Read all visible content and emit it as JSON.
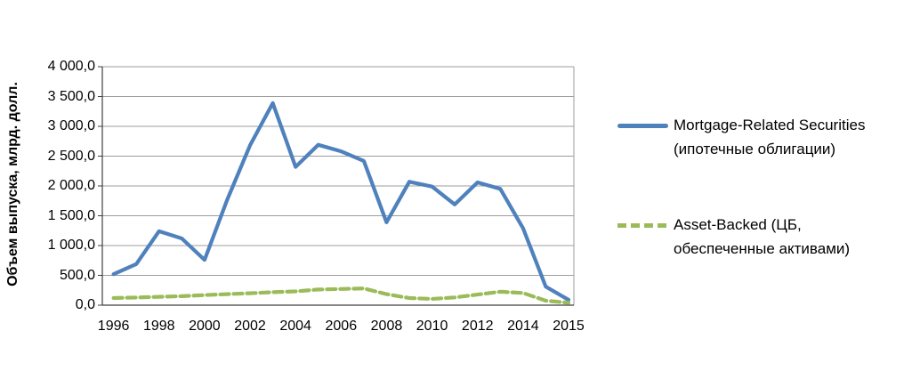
{
  "y_axis": {
    "title": "Объем выпуска, млрд. долл.",
    "tick_labels": [
      "4 000,0",
      "3 500,0",
      "3 000,0",
      "2 500,0",
      "2 000,0",
      "1 500,0",
      "1 000,0",
      "500,0",
      "0,0"
    ]
  },
  "x_axis": {
    "tick_labels": [
      "1996",
      "1998",
      "2000",
      "2002",
      "2004",
      "2006",
      "2008",
      "2010",
      "2012",
      "2014",
      "2015"
    ]
  },
  "legend": [
    {
      "label": "Mortgage-Related Securities (ипотечные облигации)",
      "color": "#4F81BD",
      "line_style": "solid"
    },
    {
      "label": "Asset-Backed (ЦБ, обеспеченные активами)",
      "color": "#9BBB59",
      "line_style": "dashed"
    }
  ],
  "colors": {
    "series1": "#4F81BD",
    "series2": "#9BBB59",
    "gridline": "#9C9C9C",
    "axis": "#3F3F3F",
    "text": "#000000",
    "background": "#FFFFFF"
  },
  "chart_data": {
    "type": "line",
    "title": "",
    "xlabel": "",
    "ylabel": "Объем выпуска, млрд. долл.",
    "ylim": [
      0,
      4000
    ],
    "y_tick_step": 500,
    "grid": "horizontal",
    "legend_position": "right",
    "n_points": 21,
    "x_tick_labels": [
      "1996",
      "1998",
      "2000",
      "2002",
      "2004",
      "2006",
      "2008",
      "2010",
      "2012",
      "2014",
      "2015"
    ],
    "x_tick_point_indices": [
      0,
      2,
      4,
      6,
      8,
      10,
      12,
      14,
      16,
      18,
      20
    ],
    "series": [
      {
        "name": "Mortgage-Related Securities (ипотечные облигации)",
        "color": "#4F81BD",
        "dash": "solid",
        "values": [
          520,
          690,
          1240,
          1120,
          760,
          1770,
          2680,
          3390,
          2320,
          2690,
          2580,
          2420,
          1390,
          2070,
          1990,
          1690,
          2060,
          1950,
          1290,
          310,
          90
        ]
      },
      {
        "name": "Asset-Backed (ЦБ, обеспеченные активами)",
        "color": "#9BBB59",
        "dash": "dashed",
        "values": [
          120,
          128,
          140,
          150,
          168,
          185,
          200,
          218,
          232,
          262,
          272,
          280,
          185,
          120,
          105,
          130,
          178,
          225,
          205,
          75,
          40
        ]
      }
    ]
  }
}
